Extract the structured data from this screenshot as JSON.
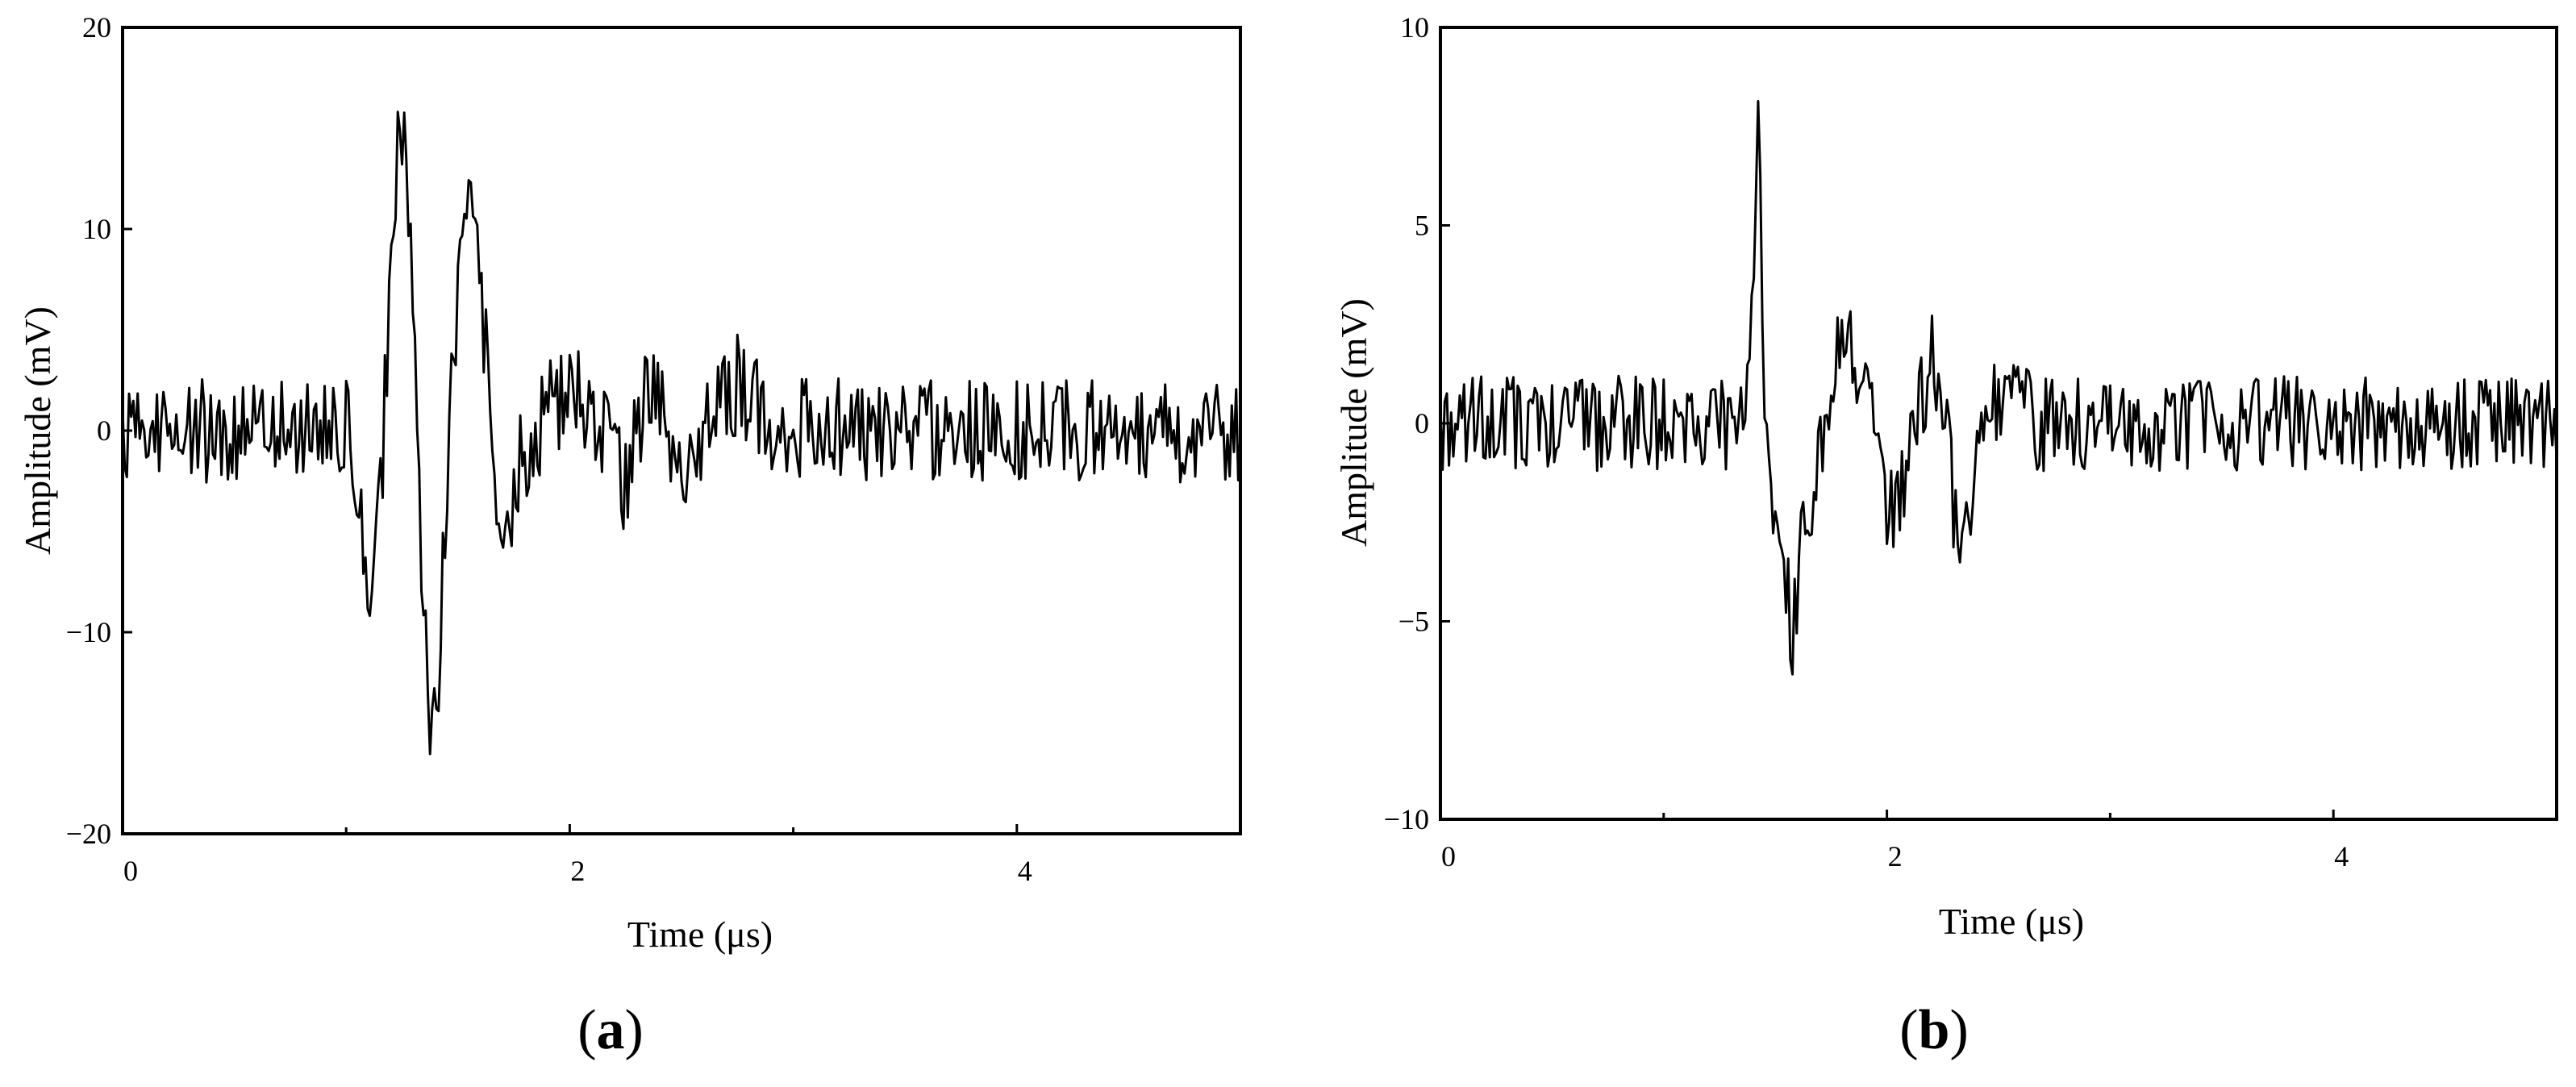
{
  "chart_data": [
    {
      "type": "line",
      "panel_label": {
        "open": "(",
        "letter": "a",
        "close": ")"
      },
      "xlabel": "Time  (μs)",
      "ylabel": "Amplitude (mV)",
      "xlim": [
        0,
        5
      ],
      "ylim": [
        -20,
        20
      ],
      "xticks": [
        0,
        2,
        4
      ],
      "xticks_minor": [
        1,
        3
      ],
      "yticks": [
        -20,
        -10,
        0,
        10,
        20
      ],
      "ytick_labels": [
        "−20",
        "−10",
        "0",
        "10",
        "20"
      ],
      "xtick_labels": [
        "0",
        "2",
        "4"
      ],
      "color": "#000000",
      "noise_amplitude": 2.6,
      "keypoints": [
        [
          0.0,
          0
        ],
        [
          1.0,
          0
        ],
        [
          1.04,
          -1.5
        ],
        [
          1.07,
          -5
        ],
        [
          1.1,
          -11
        ],
        [
          1.13,
          -7
        ],
        [
          1.16,
          -2
        ],
        [
          1.19,
          6
        ],
        [
          1.22,
          11
        ],
        [
          1.24,
          16
        ],
        [
          1.27,
          12
        ],
        [
          1.3,
          5
        ],
        [
          1.33,
          -4
        ],
        [
          1.36,
          -12
        ],
        [
          1.39,
          -15.3
        ],
        [
          1.42,
          -11
        ],
        [
          1.45,
          -3
        ],
        [
          1.48,
          4
        ],
        [
          1.52,
          9.5
        ],
        [
          1.56,
          11.8
        ],
        [
          1.6,
          7
        ],
        [
          1.65,
          0
        ],
        [
          1.69,
          -5
        ],
        [
          1.73,
          -6
        ],
        [
          1.77,
          -2
        ],
        [
          1.85,
          0
        ],
        [
          1.95,
          1.5
        ],
        [
          2.05,
          2
        ],
        [
          2.15,
          0
        ],
        [
          2.2,
          -2
        ],
        [
          2.25,
          -3
        ],
        [
          2.3,
          0.5
        ],
        [
          2.38,
          2.5
        ],
        [
          2.45,
          0
        ],
        [
          2.5,
          -2.5
        ],
        [
          2.58,
          -1
        ],
        [
          2.65,
          1
        ],
        [
          2.75,
          2.2
        ],
        [
          2.85,
          1
        ],
        [
          3.0,
          0
        ],
        [
          5.0,
          0
        ]
      ]
    },
    {
      "type": "line",
      "panel_label": {
        "open": "(",
        "letter": "b",
        "close": ")"
      },
      "xlabel": "Time  (μs)",
      "ylabel": "Amplitude (mV)",
      "xlim": [
        0,
        5
      ],
      "ylim": [
        -10,
        10
      ],
      "xticks": [
        0,
        2,
        4
      ],
      "xticks_minor": [
        1,
        3
      ],
      "yticks": [
        -10,
        -5,
        0,
        5,
        10
      ],
      "ytick_labels": [
        "−10",
        "−5",
        "0",
        "5",
        "10"
      ],
      "xtick_labels": [
        "0",
        "2",
        "4"
      ],
      "color": "#000000",
      "noise_amplitude": 1.2,
      "keypoints": [
        [
          0.0,
          0
        ],
        [
          1.35,
          0
        ],
        [
          1.38,
          0.5
        ],
        [
          1.4,
          4
        ],
        [
          1.42,
          7.9
        ],
        [
          1.44,
          4
        ],
        [
          1.46,
          -1
        ],
        [
          1.49,
          -2.5
        ],
        [
          1.52,
          -3.2
        ],
        [
          1.56,
          -4.5
        ],
        [
          1.58,
          -5.3
        ],
        [
          1.62,
          -3
        ],
        [
          1.66,
          -2.5
        ],
        [
          1.7,
          -1
        ],
        [
          1.75,
          1
        ],
        [
          1.8,
          2.6
        ],
        [
          1.85,
          1.5
        ],
        [
          1.9,
          2
        ],
        [
          1.95,
          0
        ],
        [
          2.0,
          -2.5
        ],
        [
          2.05,
          -2
        ],
        [
          2.1,
          -1
        ],
        [
          2.15,
          0.5
        ],
        [
          2.2,
          1.8
        ],
        [
          2.25,
          1
        ],
        [
          2.28,
          -1
        ],
        [
          2.32,
          -3.2
        ],
        [
          2.37,
          -2
        ],
        [
          2.45,
          0
        ],
        [
          2.55,
          1
        ],
        [
          2.65,
          0
        ],
        [
          5.0,
          0
        ]
      ]
    }
  ]
}
